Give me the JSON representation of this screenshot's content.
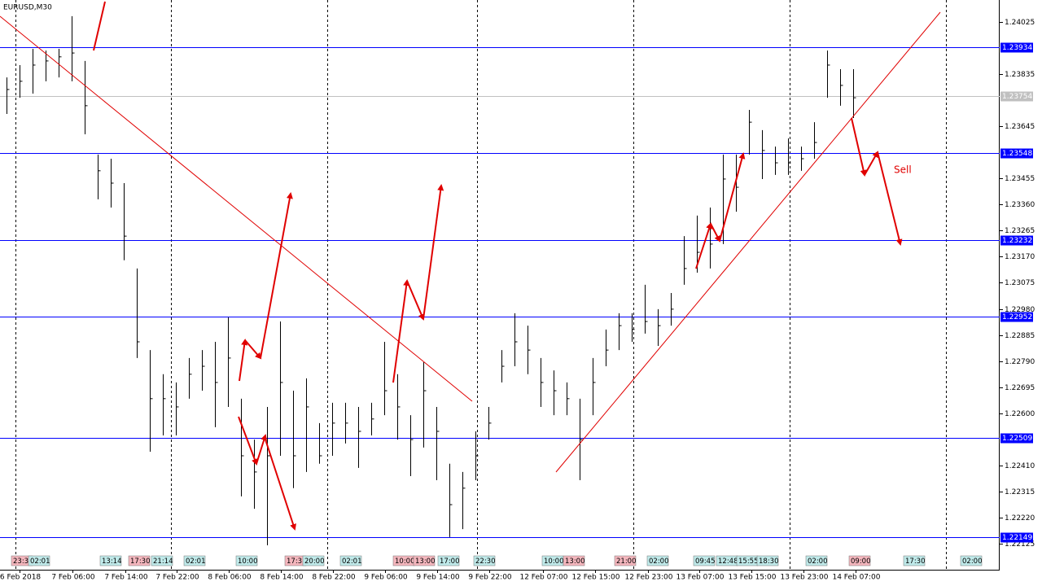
{
  "chart_data": {
    "type": "ohlc",
    "title": "EURUSD,M30",
    "ylim": [
      1.2203,
      1.24105
    ],
    "yticks": [
      {
        "value": 1.24025,
        "label": "1.24025"
      },
      {
        "value": 1.23835,
        "label": "1.23835"
      },
      {
        "value": 1.23645,
        "label": "1.23645"
      },
      {
        "value": 1.23455,
        "label": "1.23455"
      },
      {
        "value": 1.2336,
        "label": "1.23360"
      },
      {
        "value": 1.23265,
        "label": "1.23265"
      },
      {
        "value": 1.2317,
        "label": "1.23170"
      },
      {
        "value": 1.23075,
        "label": "1.23075"
      },
      {
        "value": 1.2298,
        "label": "1.22980"
      },
      {
        "value": 1.22885,
        "label": "1.22885"
      },
      {
        "value": 1.2279,
        "label": "1.22790"
      },
      {
        "value": 1.22695,
        "label": "1.22695"
      },
      {
        "value": 1.226,
        "label": "1.22600"
      },
      {
        "value": 1.2241,
        "label": "1.22410"
      },
      {
        "value": 1.22315,
        "label": "1.22315"
      },
      {
        "value": 1.2222,
        "label": "1.22220"
      },
      {
        "value": 1.22125,
        "label": "1.22125"
      }
    ],
    "levels": [
      1.23934,
      1.23548,
      1.23232,
      1.22952,
      1.22509,
      1.22149
    ],
    "current_price": 1.23754,
    "color": "#000000",
    "level_color": "#0000ff",
    "dates": [
      "6 Feb 2018",
      "7 Feb 06:00",
      "7 Feb 14:00",
      "7 Feb 22:00",
      "8 Feb 06:00",
      "8 Feb 14:00",
      "8 Feb 22:00",
      "9 Feb 06:00",
      "9 Feb 14:00",
      "9 Feb 22:00",
      "12 Feb 07:00",
      "12 Feb 15:00",
      "12 Feb 23:00",
      "13 Feb 07:00",
      "13 Feb 15:00",
      "13 Feb 23:00",
      "14 Feb 07:00"
    ],
    "events": [
      "23:3",
      "02:01",
      "13:14",
      "17:30",
      "21:14",
      "02:01",
      "10:00",
      "17:3",
      "20:00",
      "02:01",
      "10:00",
      "13:00",
      "17:00",
      "22:30",
      "10:00",
      "13:00",
      "21:00",
      "02:00",
      "09:45",
      "12:48",
      "15:55",
      "18:30",
      "02:00",
      "09:00",
      "17:30",
      "02:00"
    ],
    "annotation": "Sell",
    "high": [
      1.23823,
      1.23868,
      1.23927,
      1.23921,
      1.23927,
      1.24046,
      1.23883,
      1.23542,
      1.23527,
      1.23438,
      1.23127,
      1.2283,
      1.22742,
      1.22712,
      1.22801,
      1.2283,
      1.2286,
      1.22949,
      1.22653,
      1.22504,
      1.22623,
      1.22934,
      1.22682,
      1.22727,
      1.22564,
      1.22638,
      1.22638,
      1.22623,
      1.22638,
      1.2286,
      1.22742,
      1.22593,
      1.22786,
      1.22623,
      1.22416,
      1.22386,
      1.22534,
      1.22623,
      1.2283,
      1.22964,
      1.22919,
      1.22801,
      1.22756,
      1.22712,
      1.22653,
      1.22801,
      1.22905,
      1.22964,
      1.22964,
      1.23068,
      1.22979,
      1.23038,
      1.23245,
      1.2332,
      1.23349,
      1.23542,
      1.23542,
      1.23705,
      1.23631,
      1.23571,
      1.23601,
      1.23571,
      1.2366,
      1.23921,
      1.23853,
      1.23853
    ],
    "low": [
      1.2369,
      1.23749,
      1.23764,
      1.23809,
      1.23823,
      1.23809,
      1.23616,
      1.23379,
      1.23349,
      1.23157,
      1.22801,
      1.2246,
      1.22519,
      1.22519,
      1.22653,
      1.22682,
      1.22549,
      1.22623,
      1.22297,
      1.22252,
      1.22119,
      1.22445,
      1.22327,
      1.22386,
      1.22416,
      1.22445,
      1.2249,
      1.22401,
      1.22519,
      1.22593,
      1.22504,
      1.22371,
      1.22475,
      1.22356,
      1.22149,
      1.22178,
      1.22356,
      1.22504,
      1.22712,
      1.22771,
      1.22742,
      1.22623,
      1.22593,
      1.22593,
      1.22356,
      1.22593,
      1.22771,
      1.2283,
      1.2286,
      1.2289,
      1.22845,
      1.22919,
      1.23068,
      1.23112,
      1.23127,
      1.23216,
      1.23334,
      1.23542,
      1.23453,
      1.23468,
      1.23468,
      1.23483,
      1.23527,
      1.23749,
      1.2372,
      1.23675
    ],
    "close": [
      1.23779,
      1.23809,
      1.23868,
      1.23883,
      1.23898,
      1.23912,
      1.2372,
      1.23483,
      1.23438,
      1.23245,
      1.2286,
      1.22653,
      1.22653,
      1.22623,
      1.22742,
      1.22771,
      1.22712,
      1.22801,
      1.22445,
      1.22386,
      1.22445,
      1.22712,
      1.22445,
      1.22623,
      1.22445,
      1.22564,
      1.22564,
      1.22534,
      1.22579,
      1.22682,
      1.22623,
      1.22504,
      1.22682,
      1.22534,
      1.22267,
      1.22327,
      1.22445,
      1.22564,
      1.22771,
      1.2286,
      1.2283,
      1.22712,
      1.22682,
      1.22653,
      1.22504,
      1.22712,
      1.2283,
      1.22919,
      1.22905,
      1.22934,
      1.22919,
      1.22979,
      1.23127,
      1.23186,
      1.23216,
      1.23453,
      1.23423,
      1.2366,
      1.23557,
      1.23512,
      1.23512,
      1.23527,
      1.23586,
      1.23868,
      1.23794,
      1.23749
    ]
  }
}
